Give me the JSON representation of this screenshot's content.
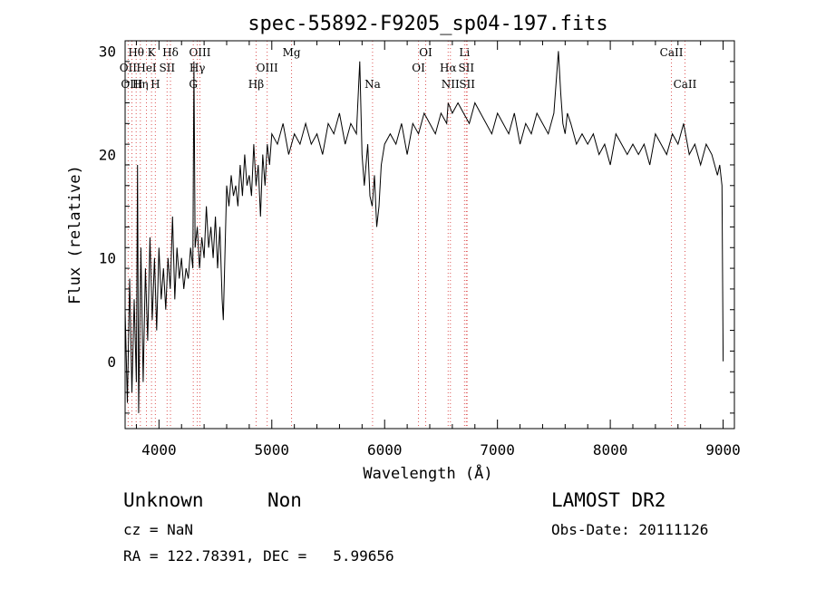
{
  "chart_data": {
    "type": "line",
    "title": "spec-55892-F9205_sp04-197.fits",
    "xlabel": "Wavelength (Å)",
    "ylabel": "Flux (relative)",
    "xlim": [
      3700,
      9100
    ],
    "ylim": [
      -6.5,
      31
    ],
    "xticks": [
      4000,
      5000,
      6000,
      7000,
      8000,
      9000
    ],
    "yticks": [
      0,
      10,
      20,
      30
    ],
    "grid": false,
    "line_color": "#000000",
    "marker_color": "#dd5555",
    "series": [
      {
        "x": [
          3700,
          3720,
          3740,
          3760,
          3780,
          3800,
          3810,
          3820,
          3840,
          3860,
          3880,
          3900,
          3920,
          3940,
          3960,
          3980,
          4000,
          4020,
          4040,
          4060,
          4080,
          4100,
          4120,
          4140,
          4160,
          4180,
          4200,
          4220,
          4240,
          4260,
          4280,
          4300,
          4310,
          4320,
          4340,
          4360,
          4380,
          4400,
          4420,
          4440,
          4460,
          4480,
          4500,
          4520,
          4540,
          4560,
          4570,
          4600,
          4620,
          4640,
          4660,
          4680,
          4700,
          4720,
          4740,
          4760,
          4780,
          4800,
          4820,
          4840,
          4860,
          4880,
          4900,
          4920,
          4940,
          4960,
          4980,
          5000,
          5050,
          5100,
          5150,
          5200,
          5250,
          5300,
          5350,
          5400,
          5450,
          5500,
          5550,
          5600,
          5650,
          5700,
          5750,
          5780,
          5800,
          5820,
          5850,
          5870,
          5890,
          5910,
          5930,
          5950,
          5970,
          6000,
          6050,
          6100,
          6150,
          6200,
          6250,
          6300,
          6350,
          6400,
          6450,
          6500,
          6550,
          6563,
          6600,
          6650,
          6700,
          6750,
          6800,
          6850,
          6900,
          6950,
          7000,
          7050,
          7100,
          7150,
          7200,
          7250,
          7300,
          7350,
          7400,
          7450,
          7500,
          7540,
          7560,
          7580,
          7600,
          7620,
          7650,
          7700,
          7750,
          7800,
          7850,
          7900,
          7950,
          8000,
          8050,
          8100,
          8150,
          8200,
          8250,
          8300,
          8350,
          8400,
          8450,
          8500,
          8550,
          8600,
          8650,
          8700,
          8750,
          8800,
          8850,
          8900,
          8950,
          8970,
          8990,
          9000
        ],
        "y": [
          5,
          -4,
          8,
          -3,
          6,
          -2,
          19,
          -5,
          11,
          -2,
          9,
          2,
          12,
          4,
          10,
          3,
          11,
          6,
          9,
          5,
          10,
          7,
          14,
          6,
          11,
          8,
          10,
          7,
          9,
          8,
          11,
          9,
          29,
          11,
          13,
          9,
          12,
          10,
          15,
          11,
          13,
          10,
          14,
          9,
          13,
          6,
          4,
          17,
          15,
          18,
          16,
          17,
          15,
          19,
          16,
          20,
          17,
          18,
          16,
          21,
          17,
          19,
          14,
          20,
          17,
          21,
          19,
          22,
          21,
          23,
          20,
          22,
          21,
          23,
          21,
          22,
          20,
          23,
          22,
          24,
          21,
          23,
          22,
          29,
          20,
          17,
          21,
          16,
          15,
          18,
          13,
          15,
          19,
          21,
          22,
          21,
          23,
          20,
          23,
          22,
          24,
          23,
          22,
          24,
          23,
          25,
          24,
          25,
          24,
          23,
          25,
          24,
          23,
          22,
          24,
          23,
          22,
          24,
          21,
          23,
          22,
          24,
          23,
          22,
          24,
          30,
          26,
          23,
          22,
          24,
          23,
          21,
          22,
          21,
          22,
          20,
          21,
          19,
          22,
          21,
          20,
          21,
          20,
          21,
          19,
          22,
          21,
          20,
          22,
          21,
          23,
          20,
          21,
          19,
          21,
          20,
          18,
          19,
          17,
          0
        ]
      }
    ],
    "line_markers": [
      {
        "label": "Hθ",
        "x": 3798,
        "row": 1
      },
      {
        "label": "OII",
        "x": 3727,
        "row": 2
      },
      {
        "label": "OIII",
        "x": 3760,
        "row": 3
      },
      {
        "label": "K",
        "x": 3934,
        "row": 1
      },
      {
        "label": "Hδ",
        "x": 4102,
        "row": 1
      },
      {
        "label": "HeI",
        "x": 3889,
        "row": 2
      },
      {
        "label": "SII",
        "x": 4072,
        "row": 2
      },
      {
        "label": "Hη",
        "x": 3835,
        "row": 3
      },
      {
        "label": "H",
        "x": 3968,
        "row": 3
      },
      {
        "label": "OIII",
        "x": 4363,
        "row": 1
      },
      {
        "label": "Hγ",
        "x": 4340,
        "row": 2
      },
      {
        "label": "G",
        "x": 4304,
        "row": 3
      },
      {
        "label": "Mg",
        "x": 5175,
        "row": 1
      },
      {
        "label": "OIII",
        "x": 4959,
        "row": 2
      },
      {
        "label": "Hβ",
        "x": 4861,
        "row": 3
      },
      {
        "label": "Na",
        "x": 5893,
        "row": 3
      },
      {
        "label": "OI",
        "x": 6364,
        "row": 1
      },
      {
        "label": "OI",
        "x": 6300,
        "row": 2
      },
      {
        "label": "Li",
        "x": 6708,
        "row": 1
      },
      {
        "label": "Hα",
        "x": 6563,
        "row": 2
      },
      {
        "label": "SII",
        "x": 6724,
        "row": 2
      },
      {
        "label": "NII",
        "x": 6583,
        "row": 3
      },
      {
        "label": "SII",
        "x": 6731,
        "row": 3
      },
      {
        "label": "CaII",
        "x": 8542,
        "row": 1
      },
      {
        "label": "CaII",
        "x": 8662,
        "row": 3
      }
    ]
  },
  "info": {
    "class_label": "Unknown",
    "subclass_label": "Non",
    "survey_label": "LAMOST DR2",
    "cz_text": "cz = NaN",
    "obs_date_text": "Obs-Date: 20111126",
    "radec_text": "RA = 122.78391, DEC =   5.99656"
  }
}
